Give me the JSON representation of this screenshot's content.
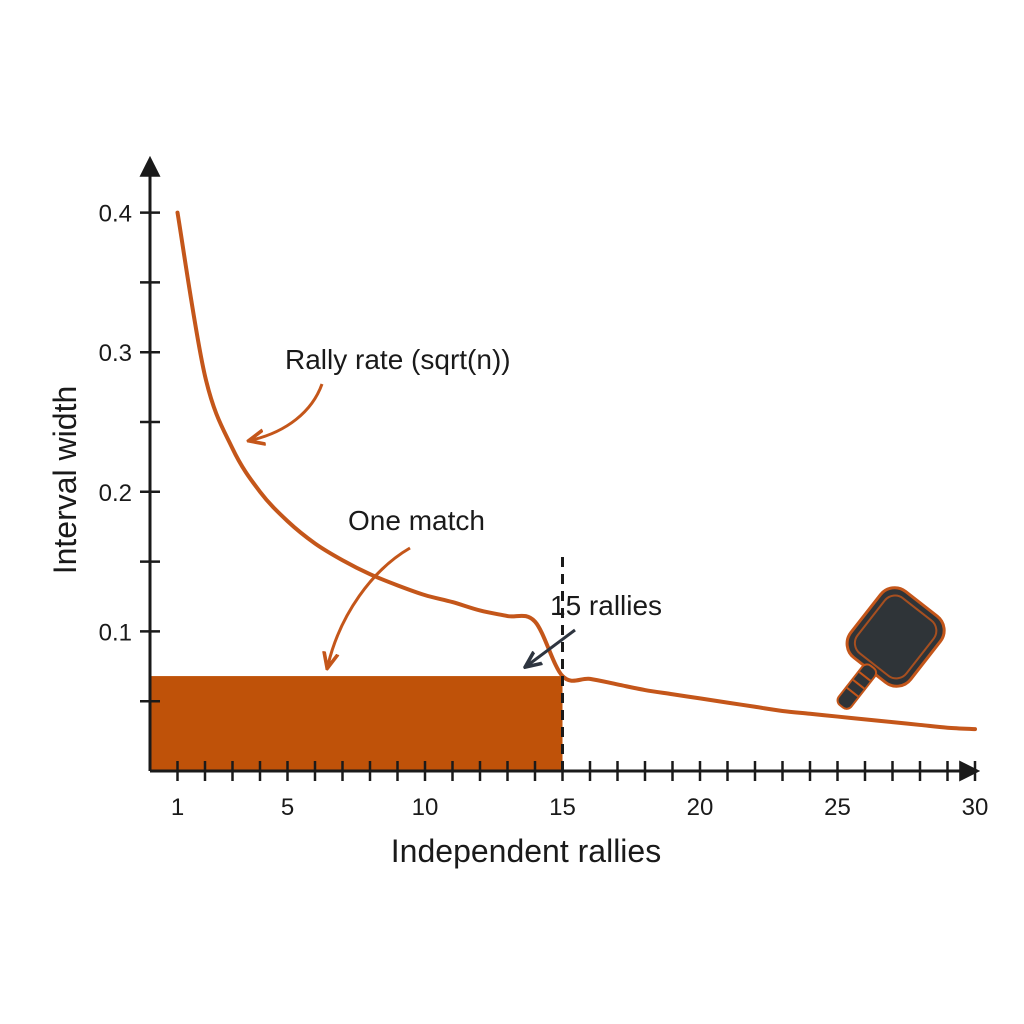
{
  "chart_data": {
    "type": "line",
    "xlabel": "Independent rallies",
    "ylabel": "Interval width",
    "xlim": [
      0,
      30
    ],
    "ylim": [
      0,
      0.4
    ],
    "x_ticks": [
      1,
      5,
      10,
      15,
      20,
      25,
      30
    ],
    "y_ticks": [
      0.1,
      0.2,
      0.3,
      0.4
    ],
    "grid": false,
    "series": [
      {
        "name": "Rally rate (sqrt(n))",
        "color": "#c4561a",
        "x": [
          1,
          2,
          3,
          4,
          5,
          6,
          7,
          8,
          9,
          10,
          11,
          12,
          13,
          14,
          15,
          16,
          17,
          18,
          19,
          20,
          21,
          22,
          23,
          24,
          25,
          26,
          27,
          28,
          29,
          30
        ],
        "values": [
          0.4,
          0.283,
          0.231,
          0.2,
          0.179,
          0.163,
          0.151,
          0.141,
          0.133,
          0.126,
          0.121,
          0.115,
          0.111,
          0.107,
          0.068,
          0.066,
          0.062,
          0.058,
          0.055,
          0.052,
          0.049,
          0.046,
          0.043,
          0.041,
          0.039,
          0.037,
          0.035,
          0.033,
          0.031,
          0.03
        ]
      }
    ],
    "shaded_region": {
      "x": [
        0,
        15
      ],
      "y": [
        0,
        0.068
      ],
      "color": "#bf5209"
    },
    "vline": {
      "x": 15,
      "style": "dashed"
    },
    "annotations": [
      {
        "text": "Rally rate (sqrt(n))",
        "target": "curve"
      },
      {
        "text": "One match",
        "target": "shaded_region"
      },
      {
        "text": "15 rallies",
        "target": "vline"
      }
    ],
    "icon": "pickleball-paddle-icon"
  }
}
